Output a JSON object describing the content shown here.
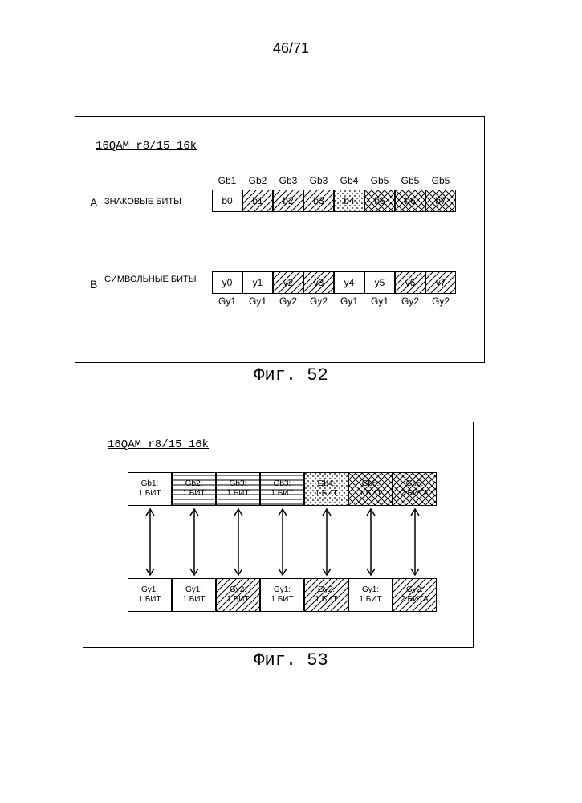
{
  "page_number": "46/71",
  "fig52": {
    "title": "16QAM r8/15 16k",
    "caption": "Фиг. 52",
    "rowA": {
      "prefix": "A",
      "label": "ЗНАКОВЫЕ БИТЫ",
      "top_labels": [
        "Gb1",
        "Gb2",
        "Gb3",
        "Gb3",
        "Gb4",
        "Gb5",
        "Gb5",
        "Gb5"
      ],
      "cells": [
        "b0",
        "b1",
        "b2",
        "b3",
        "b4",
        "b5",
        "b6",
        "b7"
      ],
      "patterns": [
        "pat-none",
        "pat-diag",
        "pat-diag",
        "pat-diag",
        "pat-dots",
        "pat-cross",
        "pat-cross",
        "pat-cross"
      ]
    },
    "rowB": {
      "prefix": "B",
      "label": "СИМВОЛЬНЫЕ БИТЫ",
      "bottom_labels": [
        "Gy1",
        "Gy1",
        "Gy2",
        "Gy2",
        "Gy1",
        "Gy1",
        "Gy2",
        "Gy2"
      ],
      "cells": [
        "y0",
        "y1",
        "y2",
        "y3",
        "y4",
        "y5",
        "y6",
        "y7"
      ],
      "patterns": [
        "pat-none",
        "pat-none",
        "pat-diag",
        "pat-diag",
        "pat-none",
        "pat-none",
        "pat-diag",
        "pat-diag"
      ]
    }
  },
  "fig53": {
    "title": "16QAM r8/15 16k",
    "caption": "Фиг. 53",
    "top_row": {
      "line1": [
        "Gb1:",
        "Gb2:",
        "Gb3:",
        "Gb3:",
        "Gb4:",
        "Gb5:",
        "Gb5:"
      ],
      "line2": [
        "1 БИТ",
        "1 БИТ",
        "1 БИТ",
        "1 БИТ",
        "1 БИТ",
        "1 БИТ",
        "2 БИТА"
      ],
      "patterns": [
        "pat-none",
        "pat-horiz",
        "pat-horiz",
        "pat-horiz",
        "pat-dots",
        "pat-cross",
        "pat-cross"
      ]
    },
    "bottom_row": {
      "line1": [
        "Gy1:",
        "Gy1:",
        "Gy2:",
        "Gy1:",
        "Gy2:",
        "Gy1:",
        "Gy2:"
      ],
      "line2": [
        "1 БИТ",
        "1 БИТ",
        "1 БИТ",
        "1 БИТ",
        "1 БИТ",
        "1 БИТ",
        "2 БИТА"
      ],
      "patterns": [
        "pat-none",
        "pat-none",
        "pat-diag",
        "pat-none",
        "pat-diag",
        "pat-none",
        "pat-diag"
      ]
    },
    "arrow_count": 7
  },
  "colors": {
    "line": "#000000",
    "bg": "#ffffff"
  }
}
